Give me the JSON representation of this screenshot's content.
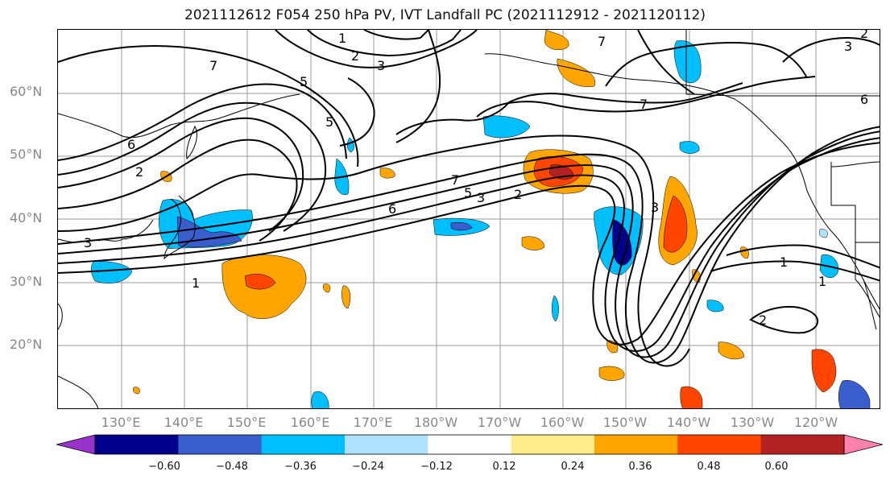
{
  "title": "2021112612 F054 250 hPa PV, IVT Landfall PC (2021112912 - 2021120112)",
  "latitude_labels": [
    "60°N",
    "50°N",
    "40°N",
    "30°N",
    "20°N"
  ],
  "longitude_labels": [
    "130°E",
    "140°E",
    "150°E",
    "160°E",
    "170°E",
    "180°W",
    "170°W",
    "160°W",
    "150°W",
    "140°W",
    "130°W",
    "120°W"
  ],
  "contour_labels": [
    "1",
    "2",
    "3",
    "7",
    "7",
    "7",
    "6",
    "6",
    "3",
    "1",
    "7",
    "5",
    "3",
    "2",
    "6",
    "2",
    "1",
    "3",
    "2",
    "5",
    "1",
    "2",
    "5",
    "3"
  ],
  "colorbar": {
    "ticks": [
      "−0.60",
      "−0.48",
      "−0.36",
      "−0.24",
      "−0.12",
      "0.12",
      "0.24",
      "0.36",
      "0.48",
      "0.60"
    ],
    "colors": [
      "#9932CC",
      "#00008B",
      "#3A5FCD",
      "#00BFFF",
      "#B0E2FF",
      "#FFFFFF",
      "#FFEC8B",
      "#FFA500",
      "#FF4500",
      "#B22222",
      "#FF82AB"
    ]
  },
  "map": {
    "projection": "cylindrical",
    "lat_range": [
      "10°N",
      "70°N"
    ],
    "lon_range": [
      "120°E",
      "110°W"
    ],
    "grid": true
  }
}
